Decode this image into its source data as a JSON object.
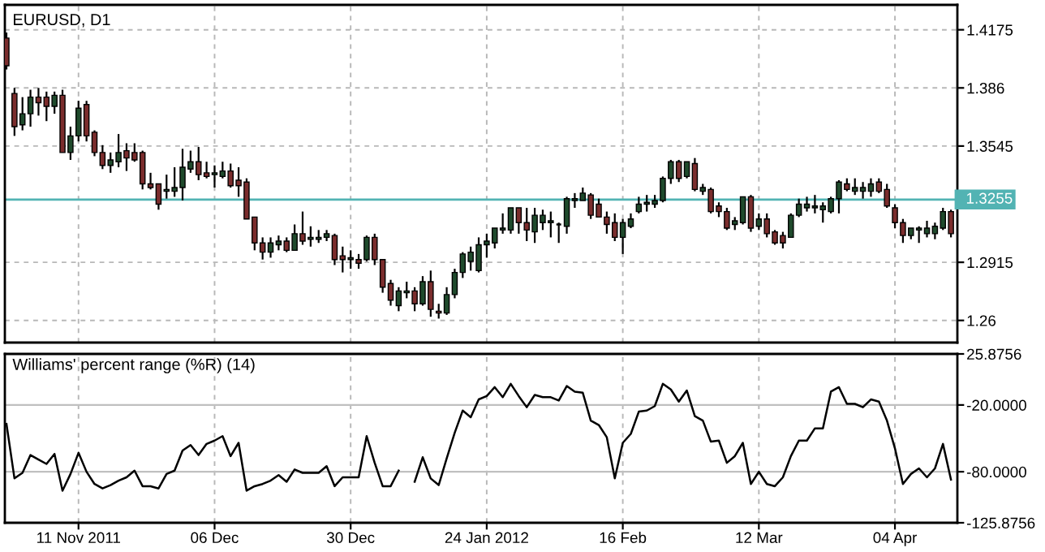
{
  "chart_data": [
    {
      "type": "candlestick",
      "title": "EURUSD, D1",
      "categories": [
        null,
        null,
        null,
        null,
        null,
        null,
        null,
        null,
        null,
        null,
        null,
        null,
        null,
        null,
        null,
        null,
        null,
        null,
        null,
        null,
        null,
        null,
        null,
        null,
        null,
        null,
        null,
        null,
        null,
        null,
        null,
        null,
        null,
        null,
        null,
        null,
        null,
        null,
        null,
        null,
        null,
        null,
        null,
        null,
        null,
        null,
        null,
        null,
        null,
        null,
        null,
        null,
        null,
        null,
        null,
        null,
        null,
        null,
        null,
        null,
        null,
        null,
        null,
        null,
        null,
        null,
        null,
        null,
        null,
        null,
        null,
        null,
        null,
        null,
        null,
        null,
        null,
        null,
        null,
        null,
        null,
        null,
        null,
        null,
        null,
        null,
        null,
        null,
        null,
        null,
        null,
        null,
        null,
        null,
        null,
        null,
        null,
        null,
        null,
        null,
        null,
        null,
        null,
        null,
        null,
        null,
        null,
        null,
        null,
        null,
        null,
        null,
        null,
        null,
        null,
        null,
        null,
        null,
        null
      ],
      "ohlc": [
        [
          1.413,
          1.416,
          1.396,
          1.398
        ],
        [
          1.383,
          1.386,
          1.36,
          1.365
        ],
        [
          1.366,
          1.381,
          1.363,
          1.372
        ],
        [
          1.372,
          1.385,
          1.365,
          1.381
        ],
        [
          1.381,
          1.386,
          1.371,
          1.378
        ],
        [
          1.381,
          1.384,
          1.368,
          1.376
        ],
        [
          1.376,
          1.384,
          1.372,
          1.382
        ],
        [
          1.382,
          1.385,
          1.351,
          1.351
        ],
        [
          1.351,
          1.365,
          1.347,
          1.36
        ],
        [
          1.36,
          1.379,
          1.357,
          1.375
        ],
        [
          1.377,
          1.379,
          1.357,
          1.36
        ],
        [
          1.362,
          1.363,
          1.349,
          1.351
        ],
        [
          1.351,
          1.355,
          1.342,
          1.344
        ],
        [
          1.344,
          1.351,
          1.34,
          1.347
        ],
        [
          1.346,
          1.361,
          1.343,
          1.351
        ],
        [
          1.352,
          1.356,
          1.341,
          1.348
        ],
        [
          1.351,
          1.356,
          1.346,
          1.347
        ],
        [
          1.351,
          1.352,
          1.331,
          1.334
        ],
        [
          1.334,
          1.34,
          1.331,
          1.332
        ],
        [
          1.334,
          1.334,
          1.32,
          1.323
        ],
        [
          1.33,
          1.339,
          1.326,
          1.331
        ],
        [
          1.33,
          1.343,
          1.327,
          1.332
        ],
        [
          1.332,
          1.353,
          1.325,
          1.343
        ],
        [
          1.342,
          1.352,
          1.34,
          1.346
        ],
        [
          1.346,
          1.354,
          1.336,
          1.339
        ],
        [
          1.34,
          1.346,
          1.337,
          1.338
        ],
        [
          1.339,
          1.344,
          1.332,
          1.34
        ],
        [
          1.338,
          1.346,
          1.337,
          1.341
        ],
        [
          1.341,
          1.345,
          1.332,
          1.333
        ],
        [
          1.336,
          1.343,
          1.327,
          1.333
        ],
        [
          1.335,
          1.337,
          1.315,
          1.315
        ],
        [
          1.316,
          1.316,
          1.298,
          1.302
        ],
        [
          1.302,
          1.305,
          1.293,
          1.297
        ],
        [
          1.297,
          1.305,
          1.294,
          1.302
        ],
        [
          1.301,
          1.306,
          1.298,
          1.303
        ],
        [
          1.303,
          1.305,
          1.297,
          1.298
        ],
        [
          1.298,
          1.312,
          1.298,
          1.307
        ],
        [
          1.307,
          1.319,
          1.301,
          1.303
        ],
        [
          1.304,
          1.311,
          1.3,
          1.305
        ],
        [
          1.304,
          1.309,
          1.302,
          1.305
        ],
        [
          1.305,
          1.309,
          1.303,
          1.307
        ],
        [
          1.306,
          1.307,
          1.29,
          1.293
        ],
        [
          1.295,
          1.3,
          1.286,
          1.293
        ],
        [
          1.293,
          1.298,
          1.288,
          1.294
        ],
        [
          1.293,
          1.296,
          1.288,
          1.291
        ],
        [
          1.293,
          1.306,
          1.292,
          1.305
        ],
        [
          1.305,
          1.307,
          1.29,
          1.293
        ],
        [
          1.293,
          1.293,
          1.275,
          1.278
        ],
        [
          1.28,
          1.282,
          1.268,
          1.271
        ],
        [
          1.268,
          1.278,
          1.265,
          1.276
        ],
        [
          1.275,
          1.281,
          1.272,
          1.276
        ],
        [
          1.276,
          1.278,
          1.265,
          1.269
        ],
        [
          1.269,
          1.284,
          1.268,
          1.281
        ],
        [
          1.281,
          1.287,
          1.262,
          1.266
        ],
        [
          1.265,
          1.269,
          1.261,
          1.264
        ],
        [
          1.264,
          1.278,
          1.263,
          1.274
        ],
        [
          1.274,
          1.288,
          1.272,
          1.286
        ],
        [
          1.286,
          1.297,
          1.283,
          1.296
        ],
        [
          1.292,
          1.3,
          1.287,
          1.297
        ],
        [
          1.287,
          1.305,
          1.286,
          1.301
        ],
        [
          1.301,
          1.307,
          1.294,
          1.303
        ],
        [
          1.302,
          1.31,
          1.299,
          1.31
        ],
        [
          1.309,
          1.318,
          1.307,
          1.31
        ],
        [
          1.309,
          1.321,
          1.307,
          1.321
        ],
        [
          1.321,
          1.321,
          1.307,
          1.313
        ],
        [
          1.313,
          1.321,
          1.303,
          1.309
        ],
        [
          1.308,
          1.321,
          1.302,
          1.317
        ],
        [
          1.313,
          1.32,
          1.309,
          1.317
        ],
        [
          1.313,
          1.319,
          1.305,
          1.314
        ],
        [
          1.312,
          1.313,
          1.302,
          1.312
        ],
        [
          1.311,
          1.327,
          1.307,
          1.326
        ],
        [
          1.325,
          1.329,
          1.321,
          1.326
        ],
        [
          1.325,
          1.332,
          1.325,
          1.329
        ],
        [
          1.328,
          1.329,
          1.315,
          1.317
        ],
        [
          1.323,
          1.326,
          1.316,
          1.316
        ],
        [
          1.316,
          1.319,
          1.307,
          1.312
        ],
        [
          1.313,
          1.318,
          1.303,
          1.305
        ],
        [
          1.305,
          1.315,
          1.296,
          1.313
        ],
        [
          1.311,
          1.318,
          1.31,
          1.315
        ],
        [
          1.319,
          1.327,
          1.318,
          1.323
        ],
        [
          1.323,
          1.328,
          1.319,
          1.324
        ],
        [
          1.323,
          1.328,
          1.321,
          1.325
        ],
        [
          1.325,
          1.338,
          1.324,
          1.337
        ],
        [
          1.337,
          1.347,
          1.334,
          1.346
        ],
        [
          1.346,
          1.347,
          1.335,
          1.337
        ],
        [
          1.338,
          1.346,
          1.337,
          1.346
        ],
        [
          1.345,
          1.348,
          1.33,
          1.331
        ],
        [
          1.33,
          1.334,
          1.328,
          1.332
        ],
        [
          1.331,
          1.332,
          1.318,
          1.319
        ],
        [
          1.322,
          1.324,
          1.316,
          1.319
        ],
        [
          1.319,
          1.321,
          1.309,
          1.31
        ],
        [
          1.312,
          1.316,
          1.309,
          1.314
        ],
        [
          1.313,
          1.327,
          1.312,
          1.327
        ],
        [
          1.327,
          1.328,
          1.308,
          1.31
        ],
        [
          1.311,
          1.318,
          1.309,
          1.315
        ],
        [
          1.315,
          1.318,
          1.305,
          1.307
        ],
        [
          1.308,
          1.309,
          1.301,
          1.302
        ],
        [
          1.306,
          1.308,
          1.299,
          1.302
        ],
        [
          1.305,
          1.318,
          1.305,
          1.317
        ],
        [
          1.317,
          1.326,
          1.316,
          1.323
        ],
        [
          1.321,
          1.327,
          1.319,
          1.323
        ],
        [
          1.321,
          1.328,
          1.318,
          1.322
        ],
        [
          1.32,
          1.324,
          1.313,
          1.322
        ],
        [
          1.319,
          1.327,
          1.318,
          1.326
        ],
        [
          1.326,
          1.336,
          1.318,
          1.335
        ],
        [
          1.334,
          1.337,
          1.33,
          1.331
        ],
        [
          1.33,
          1.337,
          1.328,
          1.332
        ],
        [
          1.33,
          1.335,
          1.326,
          1.332
        ],
        [
          1.33,
          1.337,
          1.327,
          1.334
        ],
        [
          1.335,
          1.337,
          1.329,
          1.33
        ],
        [
          1.331,
          1.334,
          1.321,
          1.322
        ],
        [
          1.321,
          1.323,
          1.31,
          1.313
        ],
        [
          1.313,
          1.315,
          1.302,
          1.306
        ],
        [
          1.306,
          1.31,
          1.304,
          1.31
        ],
        [
          1.309,
          1.311,
          1.302,
          1.31
        ],
        [
          1.307,
          1.314,
          1.305,
          1.31
        ],
        [
          1.307,
          1.313,
          1.304,
          1.311
        ],
        [
          1.31,
          1.321,
          1.309,
          1.319
        ],
        [
          1.319,
          1.32,
          1.305,
          1.307
        ]
      ],
      "ylim": [
        1.248,
        1.431
      ],
      "yticks": [
        1.4175,
        1.386,
        1.3545,
        1.2915,
        1.26
      ],
      "ref_lines": [
        {
          "axis": "y",
          "value": 1.3255,
          "label": "1.3255",
          "color": "#52b3b3"
        }
      ],
      "grid": true,
      "tick_labels": "y"
    },
    {
      "type": "line",
      "title": "Williams' percent range (%R) (14)",
      "categories": [
        null,
        null,
        null,
        null,
        null,
        null,
        null,
        null,
        null,
        "11 Nov 2011",
        null,
        null,
        null,
        null,
        null,
        null,
        null,
        null,
        null,
        null,
        null,
        null,
        null,
        null,
        null,
        null,
        "06 Dec",
        null,
        null,
        null,
        null,
        null,
        null,
        null,
        null,
        null,
        null,
        null,
        null,
        null,
        null,
        null,
        null,
        "30 Dec",
        null,
        null,
        null,
        null,
        null,
        null,
        null,
        null,
        null,
        null,
        null,
        null,
        null,
        null,
        null,
        null,
        "24 Jan 2012",
        null,
        null,
        null,
        null,
        null,
        null,
        null,
        null,
        null,
        null,
        null,
        null,
        null,
        null,
        null,
        null,
        "16 Feb",
        null,
        null,
        null,
        null,
        null,
        null,
        null,
        null,
        null,
        null,
        null,
        null,
        null,
        null,
        null,
        null,
        "12 Mar",
        null,
        null,
        null,
        null,
        null,
        null,
        null,
        null,
        null,
        null,
        null,
        null,
        null,
        null,
        null,
        null,
        "04 Apr",
        null,
        null,
        null,
        null,
        null,
        null,
        null
      ],
      "series": [
        {
          "color": "#000000",
          "values": [
            -37,
            -86,
            -81,
            -65,
            -69,
            -73,
            -64,
            -97,
            -82,
            -63,
            -80,
            -91,
            -95,
            -92,
            -88,
            -85,
            -79,
            -93,
            -93,
            -95,
            -82,
            -79,
            -61,
            -56,
            -65,
            -55,
            -52,
            -48,
            -66,
            -54,
            -97,
            -93,
            -91,
            -88,
            -83,
            -89,
            -78,
            -81,
            -81,
            -81,
            -75,
            -93,
            -85,
            -85,
            -85,
            -48,
            -72,
            -93,
            -93,
            -79,
            null,
            -89,
            -67,
            -86,
            -92,
            -68,
            -45,
            -25,
            -31,
            -15,
            -12,
            -4,
            -13,
            -1,
            -12,
            -22,
            -11,
            -13,
            -13,
            -16,
            -3,
            -8,
            -9,
            -34,
            -38,
            -49,
            -86,
            -54,
            -46,
            -26,
            -25,
            -21,
            -1,
            -6,
            -17,
            -7,
            -30,
            -34,
            -53,
            -52,
            -72,
            -66,
            -54,
            -91,
            -80,
            -91,
            -93,
            -85,
            -66,
            -52,
            -52,
            -41,
            -41,
            -8,
            -4,
            -19,
            -19,
            -22,
            -15,
            -17,
            -34,
            -59,
            -91,
            -82,
            -77,
            -85,
            -77,
            -55,
            -87
          ]
        }
      ],
      "ylim": [
        -125.8756,
        25.8756
      ],
      "yticks": [
        25.8756,
        {
          "value": -20,
          "label": "-20.0000"
        },
        {
          "value": -80,
          "label": "-80.0000"
        },
        -125.8756
      ],
      "grid": true
    }
  ]
}
